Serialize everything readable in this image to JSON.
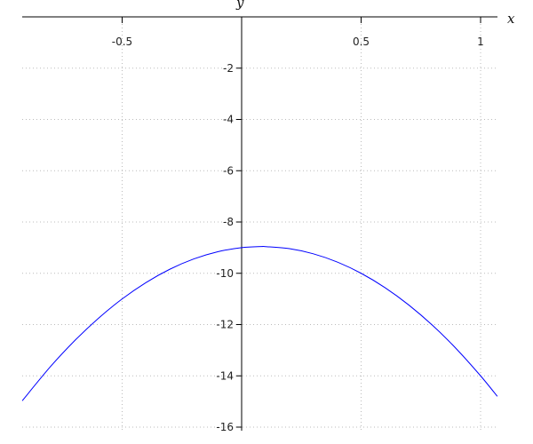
{
  "chart_data": {
    "type": "line",
    "title": "",
    "xlabel": "x",
    "ylabel": "y",
    "xlim": [
      -0.918,
      1.07
    ],
    "ylim": [
      -16,
      0
    ],
    "grid": true,
    "x_ticks": [
      {
        "value": -0.5,
        "label": "-0.5"
      },
      {
        "value": 0.5,
        "label": "0.5"
      },
      {
        "value": 1,
        "label": "1"
      }
    ],
    "y_ticks": [
      {
        "value": -2,
        "label": "-2"
      },
      {
        "value": -4,
        "label": "-4"
      },
      {
        "value": -6,
        "label": "-6"
      },
      {
        "value": -8,
        "label": "-8"
      },
      {
        "value": -10,
        "label": "-10"
      },
      {
        "value": -12,
        "label": "-12"
      },
      {
        "value": -14,
        "label": "-14"
      },
      {
        "value": -16,
        "label": "-16"
      }
    ],
    "series": [
      {
        "color": "#0000ff",
        "x": [
          -0.918,
          -0.8,
          -0.7,
          -0.6,
          -0.5,
          -0.4,
          -0.3,
          -0.2,
          -0.1,
          0,
          0.083,
          0.1,
          0.2,
          0.3,
          0.4,
          0.5,
          0.6,
          0.7,
          0.8,
          0.9,
          1.0,
          1.07
        ],
        "y": [
          -14.97,
          -13.64,
          -12.64,
          -11.76,
          -11.0,
          -10.36,
          -9.84,
          -9.44,
          -9.16,
          -9.0,
          -8.958,
          -8.96,
          -9.04,
          -9.24,
          -9.56,
          -10.0,
          -10.56,
          -11.24,
          -12.04,
          -12.96,
          -14.0,
          -14.8
        ]
      }
    ]
  }
}
